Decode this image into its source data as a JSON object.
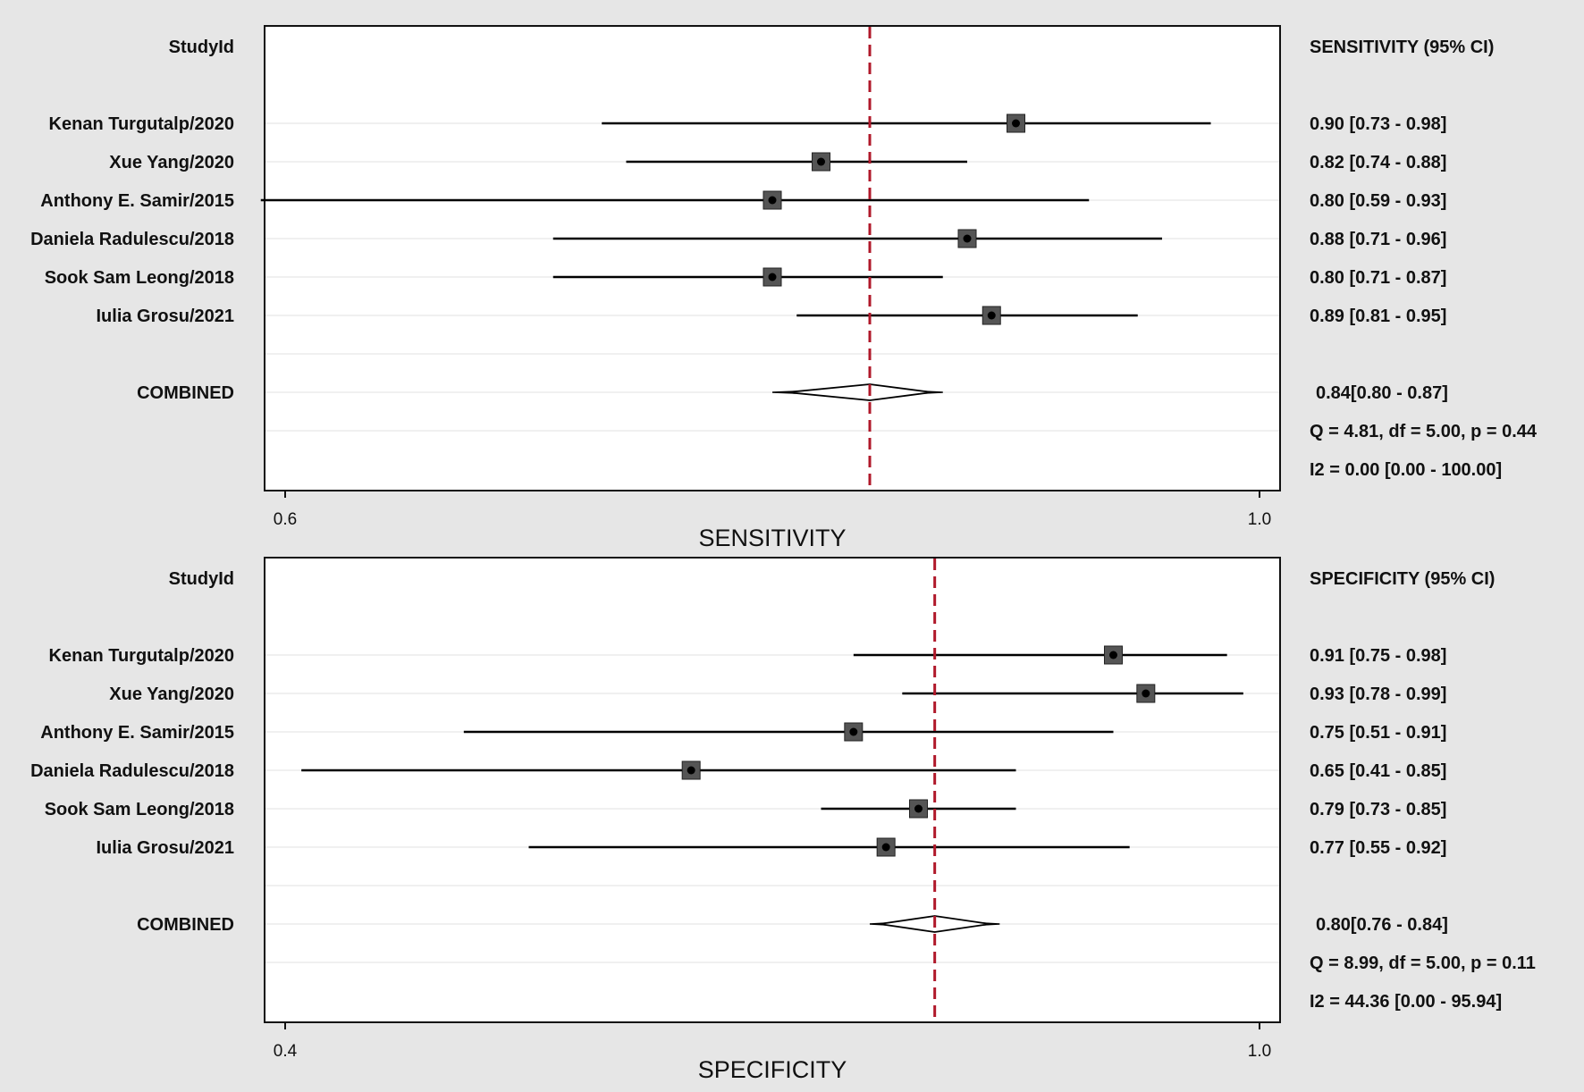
{
  "chart_data": [
    {
      "type": "forest",
      "xlabel": "SENSITIVITY",
      "xlim": [
        0.6,
        1.0
      ],
      "ticks": [
        "0.6",
        "1.0"
      ],
      "tick_values": [
        0.6,
        1.0
      ],
      "col_header_left": "StudyId",
      "col_header_right": "SENSITIVITY (95% CI)",
      "reference_line": 0.84,
      "studies": [
        {
          "name": "Kenan Turgutalp/2020",
          "estimate": 0.9,
          "lower": 0.73,
          "upper": 0.98,
          "label": "0.90 [0.73 - 0.98]"
        },
        {
          "name": "Xue Yang/2020",
          "estimate": 0.82,
          "lower": 0.74,
          "upper": 0.88,
          "label": "0.82 [0.74 - 0.88]"
        },
        {
          "name": "Anthony E. Samir/2015",
          "estimate": 0.8,
          "lower": 0.59,
          "upper": 0.93,
          "label": "0.80 [0.59 - 0.93]"
        },
        {
          "name": "Daniela Radulescu/2018",
          "estimate": 0.88,
          "lower": 0.71,
          "upper": 0.96,
          "label": "0.88 [0.71 - 0.96]"
        },
        {
          "name": "Sook Sam Leong/2018",
          "estimate": 0.8,
          "lower": 0.71,
          "upper": 0.87,
          "label": "0.80 [0.71 - 0.87]"
        },
        {
          "name": "Iulia Grosu/2021",
          "estimate": 0.89,
          "lower": 0.81,
          "upper": 0.95,
          "label": "0.89 [0.81 - 0.95]"
        }
      ],
      "combined": {
        "name": "COMBINED",
        "estimate": 0.84,
        "lower": 0.8,
        "upper": 0.87,
        "label": "0.84[0.80 - 0.87]"
      },
      "stats": [
        "Q =  4.81, df = 5.00, p =  0.44",
        "I2 = 0.00 [0.00 - 100.00]"
      ]
    },
    {
      "type": "forest",
      "xlabel": "SPECIFICITY",
      "xlim": [
        0.4,
        1.0
      ],
      "ticks": [
        "0.4",
        "1.0"
      ],
      "tick_values": [
        0.4,
        1.0
      ],
      "col_header_left": "StudyId",
      "col_header_right": "SPECIFICITY (95% CI)",
      "reference_line": 0.8,
      "studies": [
        {
          "name": "Kenan Turgutalp/2020",
          "estimate": 0.91,
          "lower": 0.75,
          "upper": 0.98,
          "label": "0.91 [0.75 - 0.98]"
        },
        {
          "name": "Xue Yang/2020",
          "estimate": 0.93,
          "lower": 0.78,
          "upper": 0.99,
          "label": "0.93 [0.78 - 0.99]"
        },
        {
          "name": "Anthony E. Samir/2015",
          "estimate": 0.75,
          "lower": 0.51,
          "upper": 0.91,
          "label": "0.75 [0.51 - 0.91]"
        },
        {
          "name": "Daniela Radulescu/2018",
          "estimate": 0.65,
          "lower": 0.41,
          "upper": 0.85,
          "label": "0.65 [0.41 - 0.85]"
        },
        {
          "name": "Sook Sam Leong/2018",
          "estimate": 0.79,
          "lower": 0.73,
          "upper": 0.85,
          "label": "0.79 [0.73 - 0.85]"
        },
        {
          "name": "Iulia Grosu/2021",
          "estimate": 0.77,
          "lower": 0.55,
          "upper": 0.92,
          "label": "0.77 [0.55 - 0.92]"
        }
      ],
      "combined": {
        "name": "COMBINED",
        "estimate": 0.8,
        "lower": 0.76,
        "upper": 0.84,
        "label": "0.80[0.76 - 0.84]"
      },
      "stats": [
        "Q =  8.99, df = 5.00, p =  0.11",
        "I2 = 44.36 [0.00 - 95.94]"
      ]
    }
  ],
  "colors": {
    "background": "#e6e6e6",
    "plot_area": "#ffffff",
    "reference_line": "#b0182a",
    "marker_box": "#555555",
    "marker_dot": "#000000"
  }
}
